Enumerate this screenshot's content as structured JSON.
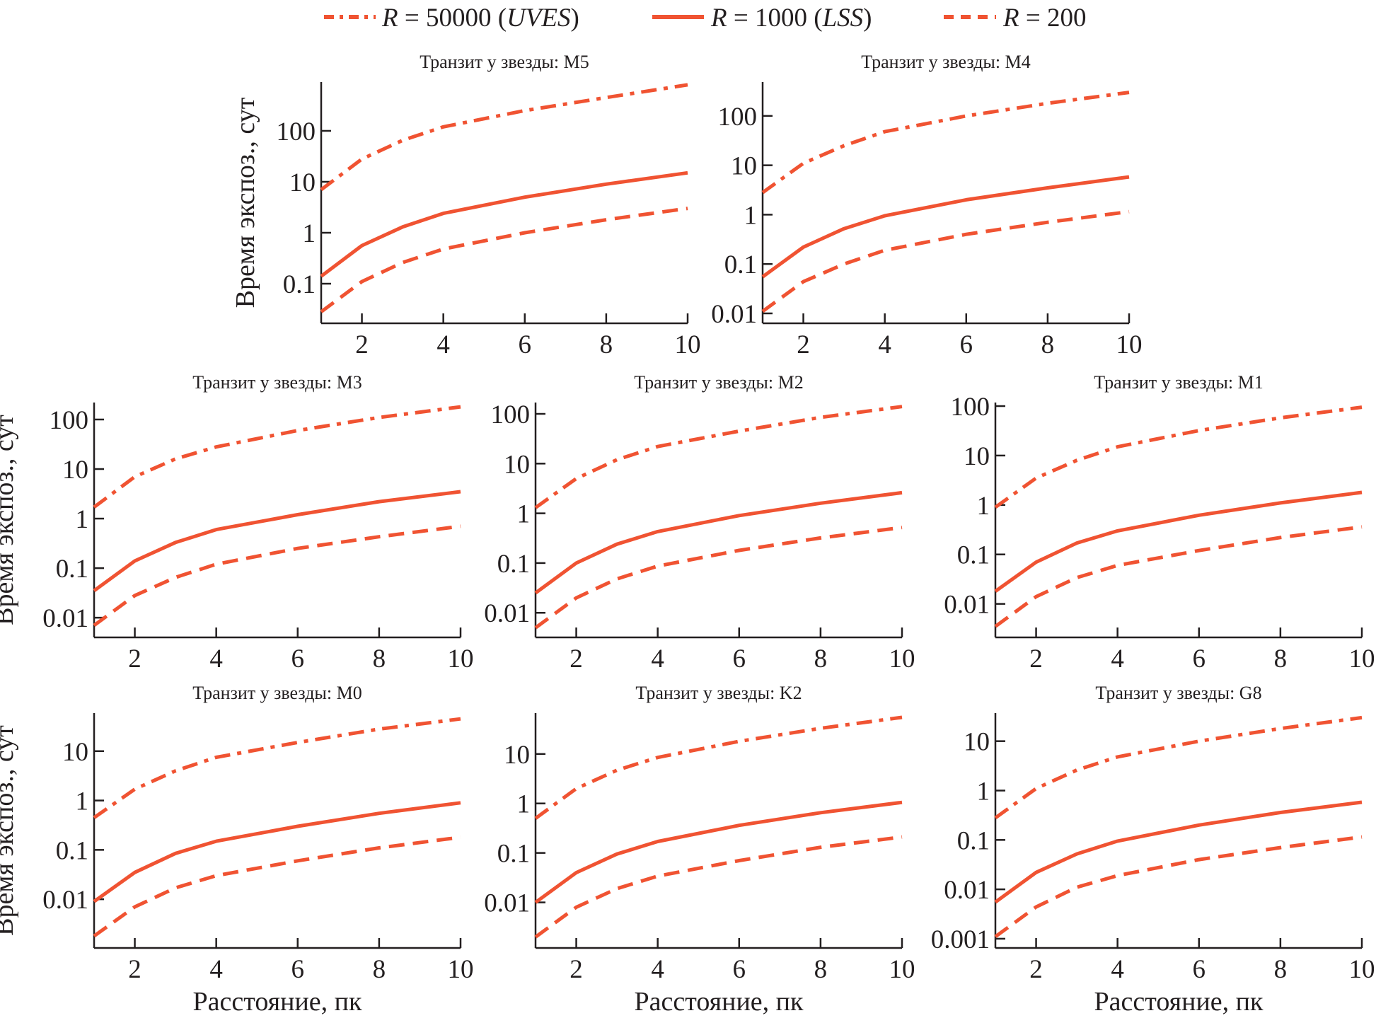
{
  "chart_data": {
    "type": "line",
    "yscale": "log",
    "line_color": "#f05332",
    "legend": {
      "placement": "top-center",
      "entries": [
        {
          "key": "r50000",
          "symbol": "R",
          "text": " = 50000 (",
          "instrument": "UVES",
          "close": ")",
          "style": "dashdot"
        },
        {
          "key": "r1000",
          "symbol": "R",
          "text": " = 1000 (",
          "instrument": "LSS",
          "close": ")",
          "style": "solid"
        },
        {
          "key": "r200",
          "symbol": "R",
          "text": " = 200",
          "instrument": "",
          "close": "",
          "style": "dashed"
        }
      ]
    },
    "xlabel": "Расстояние, пк",
    "ylabel": "Время экспоз., сут",
    "x": [
      1,
      2,
      3,
      4,
      6,
      8,
      10
    ],
    "xticks": [
      2,
      4,
      6,
      8,
      10
    ],
    "xlim": [
      1,
      10
    ],
    "panels": [
      {
        "id": "M5",
        "title": "Транзит у звезды: M5",
        "ylim": [
          0.0167,
          907
        ],
        "yticks": [
          0.1,
          1,
          10,
          100
        ],
        "ytick_labels": [
          "0.1",
          "1",
          "10",
          "100"
        ],
        "show_ylabel": true,
        "show_xlabel": false,
        "series": [
          {
            "name": "R = 50000 (UVES)",
            "style": "dashdot",
            "values": [
              7,
              28,
              65,
              120,
              250,
              450,
              800
            ]
          },
          {
            "name": "R = 1000 (LSS)",
            "style": "solid",
            "values": [
              0.14,
              0.56,
              1.3,
              2.4,
              5,
              9,
              15
            ]
          },
          {
            "name": "R = 200",
            "style": "dashed",
            "values": [
              0.028,
              0.11,
              0.26,
              0.48,
              1.0,
              1.8,
              3.0
            ]
          }
        ]
      },
      {
        "id": "M4",
        "title": "Транзит у звезды: M4",
        "ylim": [
          0.0063,
          485
        ],
        "yticks": [
          0.01,
          0.1,
          1,
          10,
          100
        ],
        "ytick_labels": [
          "0.01",
          "0.1",
          "1",
          "10",
          "100"
        ],
        "show_ylabel": false,
        "show_xlabel": false,
        "series": [
          {
            "name": "R = 50000 (UVES)",
            "style": "dashdot",
            "values": [
              2.8,
              11,
              25,
              48,
              100,
              180,
              300
            ]
          },
          {
            "name": "R = 1000 (LSS)",
            "style": "solid",
            "values": [
              0.055,
              0.22,
              0.52,
              0.95,
              2.0,
              3.5,
              5.8
            ]
          },
          {
            "name": "R = 200",
            "style": "dashed",
            "values": [
              0.011,
              0.044,
              0.1,
              0.19,
              0.4,
              0.7,
              1.15
            ]
          }
        ]
      },
      {
        "id": "M3",
        "title": "Транзит у звезды: M3",
        "ylim": [
          0.004,
          220
        ],
        "yticks": [
          0.01,
          0.1,
          1,
          10,
          100
        ],
        "ytick_labels": [
          "0.01",
          "0.1",
          "1",
          "10",
          "100"
        ],
        "show_ylabel": true,
        "show_xlabel": false,
        "series": [
          {
            "name": "R = 50000 (UVES)",
            "style": "dashdot",
            "values": [
              1.7,
              7,
              16,
              28,
              60,
              110,
              180
            ]
          },
          {
            "name": "R = 1000 (LSS)",
            "style": "solid",
            "values": [
              0.035,
              0.14,
              0.33,
              0.6,
              1.2,
              2.2,
              3.5
            ]
          },
          {
            "name": "R = 200",
            "style": "dashed",
            "values": [
              0.007,
              0.028,
              0.065,
              0.12,
              0.25,
              0.43,
              0.7
            ]
          }
        ]
      },
      {
        "id": "M2",
        "title": "Транзит у звезды: M2",
        "ylim": [
          0.0032,
          169
        ],
        "yticks": [
          0.01,
          0.1,
          1,
          10,
          100
        ],
        "ytick_labels": [
          "0.01",
          "0.1",
          "1",
          "10",
          "100"
        ],
        "show_ylabel": false,
        "show_xlabel": false,
        "series": [
          {
            "name": "R = 50000 (UVES)",
            "style": "dashdot",
            "values": [
              1.3,
              5,
              12,
              22,
              45,
              85,
              140
            ]
          },
          {
            "name": "R = 1000 (LSS)",
            "style": "solid",
            "values": [
              0.025,
              0.1,
              0.24,
              0.43,
              0.9,
              1.6,
              2.6
            ]
          },
          {
            "name": "R = 200",
            "style": "dashed",
            "values": [
              0.005,
              0.02,
              0.048,
              0.087,
              0.18,
              0.32,
              0.52
            ]
          }
        ]
      },
      {
        "id": "M1",
        "title": "Транзит у звезды: M1",
        "ylim": [
          0.0021,
          118
        ],
        "yticks": [
          0.01,
          0.1,
          1,
          10,
          100
        ],
        "ytick_labels": [
          "0.01",
          "0.1",
          "1",
          "10",
          "100"
        ],
        "show_ylabel": false,
        "show_xlabel": false,
        "series": [
          {
            "name": "R = 50000 (UVES)",
            "style": "dashdot",
            "values": [
              0.9,
              3.5,
              8,
              15,
              32,
              58,
              95
            ]
          },
          {
            "name": "R = 1000 (LSS)",
            "style": "solid",
            "values": [
              0.018,
              0.07,
              0.17,
              0.3,
              0.62,
              1.1,
              1.8
            ]
          },
          {
            "name": "R = 200",
            "style": "dashed",
            "values": [
              0.0035,
              0.014,
              0.034,
              0.06,
              0.12,
              0.22,
              0.36
            ]
          }
        ]
      },
      {
        "id": "M0",
        "title": "Транзит у звезды: M0",
        "ylim": [
          0.00103,
          59
        ],
        "yticks": [
          0.01,
          0.1,
          1,
          10
        ],
        "ytick_labels": [
          "0.01",
          "0.1",
          "1",
          "10"
        ],
        "show_ylabel": true,
        "show_xlabel": true,
        "series": [
          {
            "name": "R = 50000 (UVES)",
            "style": "dashdot",
            "values": [
              0.45,
              1.7,
              4,
              7.5,
              15,
              28,
              45
            ]
          },
          {
            "name": "R = 1000 (LSS)",
            "style": "solid",
            "values": [
              0.009,
              0.035,
              0.085,
              0.15,
              0.3,
              0.55,
              0.9
            ]
          },
          {
            "name": "R = 200",
            "style": "dashed",
            "values": [
              0.0018,
              0.007,
              0.017,
              0.03,
              0.06,
              0.11,
              0.18
            ]
          }
        ]
      },
      {
        "id": "K2",
        "title": "Транзит у звезды: K2",
        "ylim": [
          0.0012,
          67
        ],
        "yticks": [
          0.01,
          0.1,
          1,
          10
        ],
        "ytick_labels": [
          "0.01",
          "0.1",
          "1",
          "10"
        ],
        "show_ylabel": false,
        "show_xlabel": true,
        "series": [
          {
            "name": "R = 50000 (UVES)",
            "style": "dashdot",
            "values": [
              0.5,
              2,
              4.7,
              8.5,
              18,
              33,
              55
            ]
          },
          {
            "name": "R = 1000 (LSS)",
            "style": "solid",
            "values": [
              0.01,
              0.04,
              0.095,
              0.17,
              0.36,
              0.65,
              1.05
            ]
          },
          {
            "name": "R = 200",
            "style": "dashed",
            "values": [
              0.002,
              0.008,
              0.019,
              0.034,
              0.07,
              0.13,
              0.21
            ]
          }
        ]
      },
      {
        "id": "G8",
        "title": "Транзит у звезды: G8",
        "ylim": [
          0.00065,
          37
        ],
        "yticks": [
          0.001,
          0.01,
          0.1,
          1,
          10
        ],
        "ytick_labels": [
          "0.001",
          "0.01",
          "0.1",
          "1",
          "10"
        ],
        "show_ylabel": false,
        "show_xlabel": true,
        "series": [
          {
            "name": "R = 50000 (UVES)",
            "style": "dashdot",
            "values": [
              0.28,
              1.1,
              2.6,
              4.8,
              10,
              18,
              30
            ]
          },
          {
            "name": "R = 1000 (LSS)",
            "style": "solid",
            "values": [
              0.0055,
              0.022,
              0.052,
              0.095,
              0.2,
              0.36,
              0.58
            ]
          },
          {
            "name": "R = 200",
            "style": "dashed",
            "values": [
              0.0011,
              0.0044,
              0.011,
              0.019,
              0.04,
              0.07,
              0.115
            ]
          }
        ]
      }
    ]
  }
}
